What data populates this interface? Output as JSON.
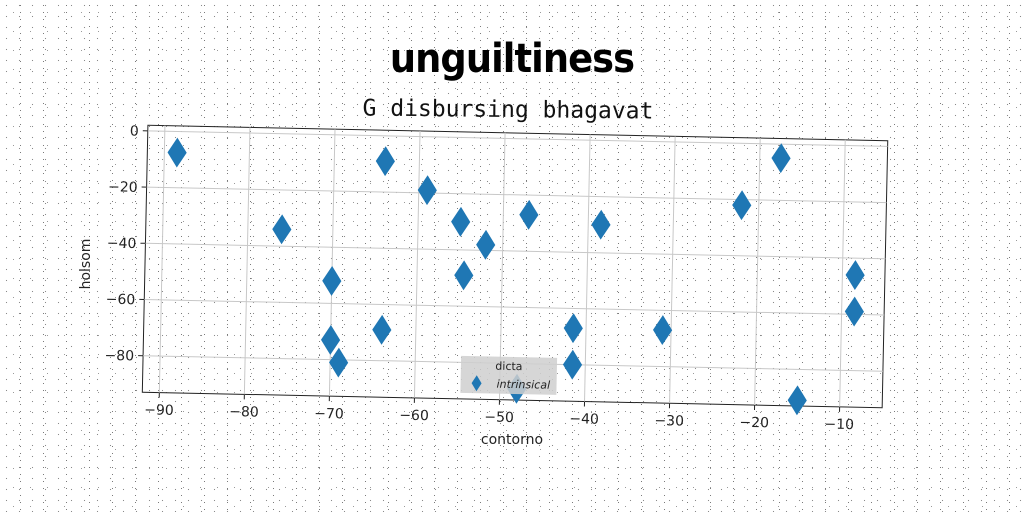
{
  "chart_data": {
    "type": "scatter",
    "title": "unguiltiness",
    "subtitle": "G disbursing bhagavat",
    "xlabel": "contorno",
    "ylabel": "holsom",
    "xlim": [
      -92,
      -5
    ],
    "ylim": [
      -93,
      2
    ],
    "xticks": [
      -90,
      -80,
      -70,
      -60,
      -50,
      -40,
      -30,
      -20,
      -10
    ],
    "yticks": [
      0,
      -20,
      -40,
      -60,
      -80
    ],
    "grid": true,
    "legend": {
      "title": "dicta",
      "placement": "bottom-center"
    },
    "marker": "thin_diamond",
    "color": "#1f77b4",
    "series": [
      {
        "name": "intrinsical",
        "points": [
          {
            "x": -88.5,
            "y": -7.5
          },
          {
            "x": -76,
            "y": -34
          },
          {
            "x": -70,
            "y": -52
          },
          {
            "x": -70,
            "y": -73
          },
          {
            "x": -69,
            "y": -81
          },
          {
            "x": -64,
            "y": -69
          },
          {
            "x": -64,
            "y": -9
          },
          {
            "x": -59,
            "y": -19
          },
          {
            "x": -55,
            "y": -30
          },
          {
            "x": -54.5,
            "y": -49
          },
          {
            "x": -52,
            "y": -38
          },
          {
            "x": -48,
            "y": -89
          },
          {
            "x": -47,
            "y": -27
          },
          {
            "x": -41.5,
            "y": -67
          },
          {
            "x": -41.5,
            "y": -80
          },
          {
            "x": -38.5,
            "y": -30
          },
          {
            "x": -31,
            "y": -67
          },
          {
            "x": -22,
            "y": -22
          },
          {
            "x": -17.5,
            "y": -5
          },
          {
            "x": -15,
            "y": -91
          },
          {
            "x": -8.5,
            "y": -46
          },
          {
            "x": -8.5,
            "y": -59
          }
        ]
      }
    ]
  }
}
